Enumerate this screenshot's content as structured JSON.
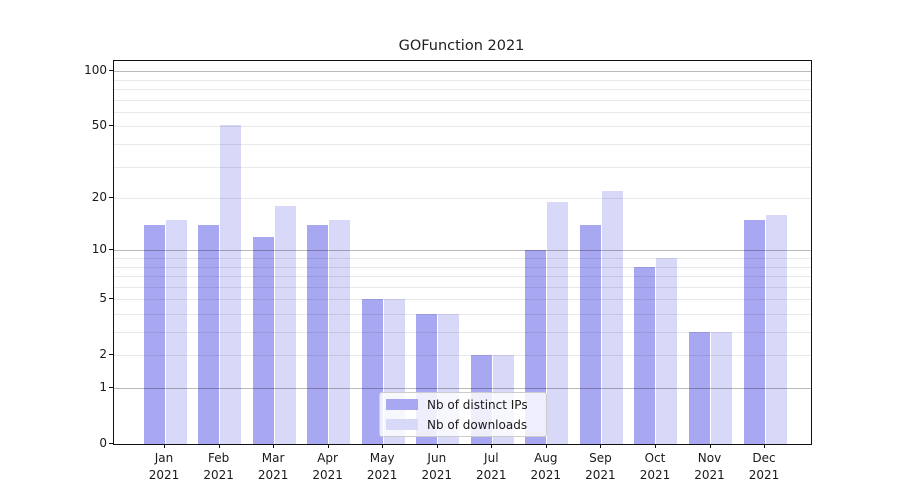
{
  "chart_data": {
    "type": "bar",
    "title": "GOFunction 2021",
    "categories": [
      "Jan",
      "Feb",
      "Mar",
      "Apr",
      "May",
      "Jun",
      "Jul",
      "Aug",
      "Sep",
      "Oct",
      "Nov",
      "Dec"
    ],
    "x_tick_year": "2021",
    "series": [
      {
        "name": "Nb of distinct IPs",
        "color": "#a8a8f2",
        "values": [
          14,
          14,
          12,
          14,
          5,
          4,
          2,
          10,
          14,
          8,
          3,
          15
        ]
      },
      {
        "name": "Nb of downloads",
        "color": "#d8d8f8",
        "values": [
          15,
          51,
          18,
          15,
          5,
          4,
          2,
          19,
          22,
          9,
          3,
          16
        ]
      }
    ],
    "xlabel": "",
    "ylabel": "",
    "y_scale": "log1p",
    "ylim": [
      0,
      114
    ],
    "y_ticks": [
      0,
      1,
      2,
      5,
      10,
      20,
      50,
      100
    ],
    "y_major_gridlines": [
      1,
      10,
      100
    ],
    "y_minor_gridlines": [
      3,
      4,
      6,
      7,
      8,
      9,
      30,
      40,
      60,
      70,
      80,
      90
    ],
    "grid": true,
    "legend_position": "lower center",
    "colors": {
      "grid_major": "#bababa",
      "grid_minor": "#e9e9e9",
      "axis": "#111111"
    }
  }
}
